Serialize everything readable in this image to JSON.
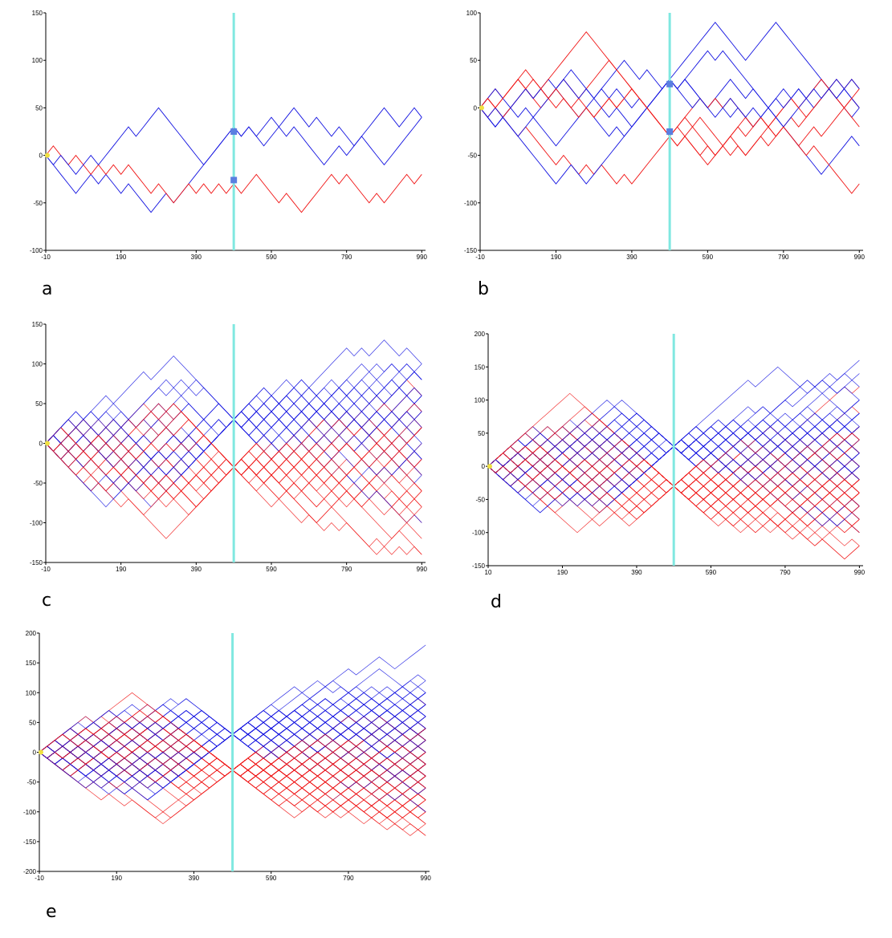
{
  "colors": {
    "series_up": "#1010e0",
    "series_down": "#f01010",
    "marker_line": "#80e8e0",
    "start_marker": "#f0e040",
    "marker_square": "#5a7fe0"
  },
  "chart_data": [
    {
      "id": "a",
      "type": "line",
      "label": "a",
      "xticks": [
        "-10",
        "190",
        "390",
        "590",
        "790",
        "990"
      ],
      "yticks": [
        "150",
        "100",
        "50",
        "0",
        "-50",
        "-100"
      ],
      "xlim": [
        -10,
        1000
      ],
      "ylim": [
        -100,
        150
      ],
      "vline_x": 490,
      "paths": 3,
      "seed": 11,
      "grid": false,
      "markers": [
        {
          "x": 490,
          "y": 25,
          "color": "blue"
        },
        {
          "x": 490,
          "y": -26,
          "color": "blue"
        }
      ]
    },
    {
      "id": "b",
      "type": "line",
      "label": "b",
      "xticks": [
        "-10",
        "190",
        "390",
        "590",
        "790",
        "990"
      ],
      "yticks": [
        "100",
        "50",
        "0",
        "-50",
        "-100",
        "-150"
      ],
      "xlim": [
        -10,
        1000
      ],
      "ylim": [
        -150,
        100
      ],
      "vline_x": 490,
      "paths": 10,
      "seed": 23,
      "grid": false,
      "markers": [
        {
          "x": 490,
          "y": 25,
          "color": "blue"
        },
        {
          "x": 490,
          "y": -25,
          "color": "blue"
        }
      ]
    },
    {
      "id": "c",
      "type": "line",
      "label": "c",
      "xticks": [
        "-10",
        "190",
        "390",
        "590",
        "790",
        "990"
      ],
      "yticks": [
        "150",
        "100",
        "50",
        "0",
        "-50",
        "-100",
        "-150"
      ],
      "xlim": [
        -10,
        1000
      ],
      "ylim": [
        -150,
        150
      ],
      "vline_x": 490,
      "paths": 60,
      "seed": 37,
      "grid": false,
      "markers": []
    },
    {
      "id": "d",
      "type": "line",
      "label": "d",
      "xticks": [
        "10",
        "190",
        "390",
        "590",
        "790",
        "990"
      ],
      "yticks": [
        "200",
        "150",
        "100",
        "50",
        "0",
        "-50",
        "-100",
        "-150"
      ],
      "xlim": [
        -10,
        1000
      ],
      "ylim": [
        -150,
        200
      ],
      "vline_x": 490,
      "paths": 120,
      "seed": 41,
      "grid": false,
      "markers": []
    },
    {
      "id": "e",
      "type": "line",
      "label": "e",
      "xticks": [
        "-10",
        "190",
        "390",
        "590",
        "790",
        "990"
      ],
      "yticks": [
        "200",
        "150",
        "100",
        "50",
        "0",
        "-50",
        "-100",
        "-150",
        "-200"
      ],
      "xlim": [
        -10,
        1000
      ],
      "ylim": [
        -200,
        200
      ],
      "vline_x": 490,
      "paths": 200,
      "seed": 53,
      "grid": false,
      "markers": []
    }
  ]
}
